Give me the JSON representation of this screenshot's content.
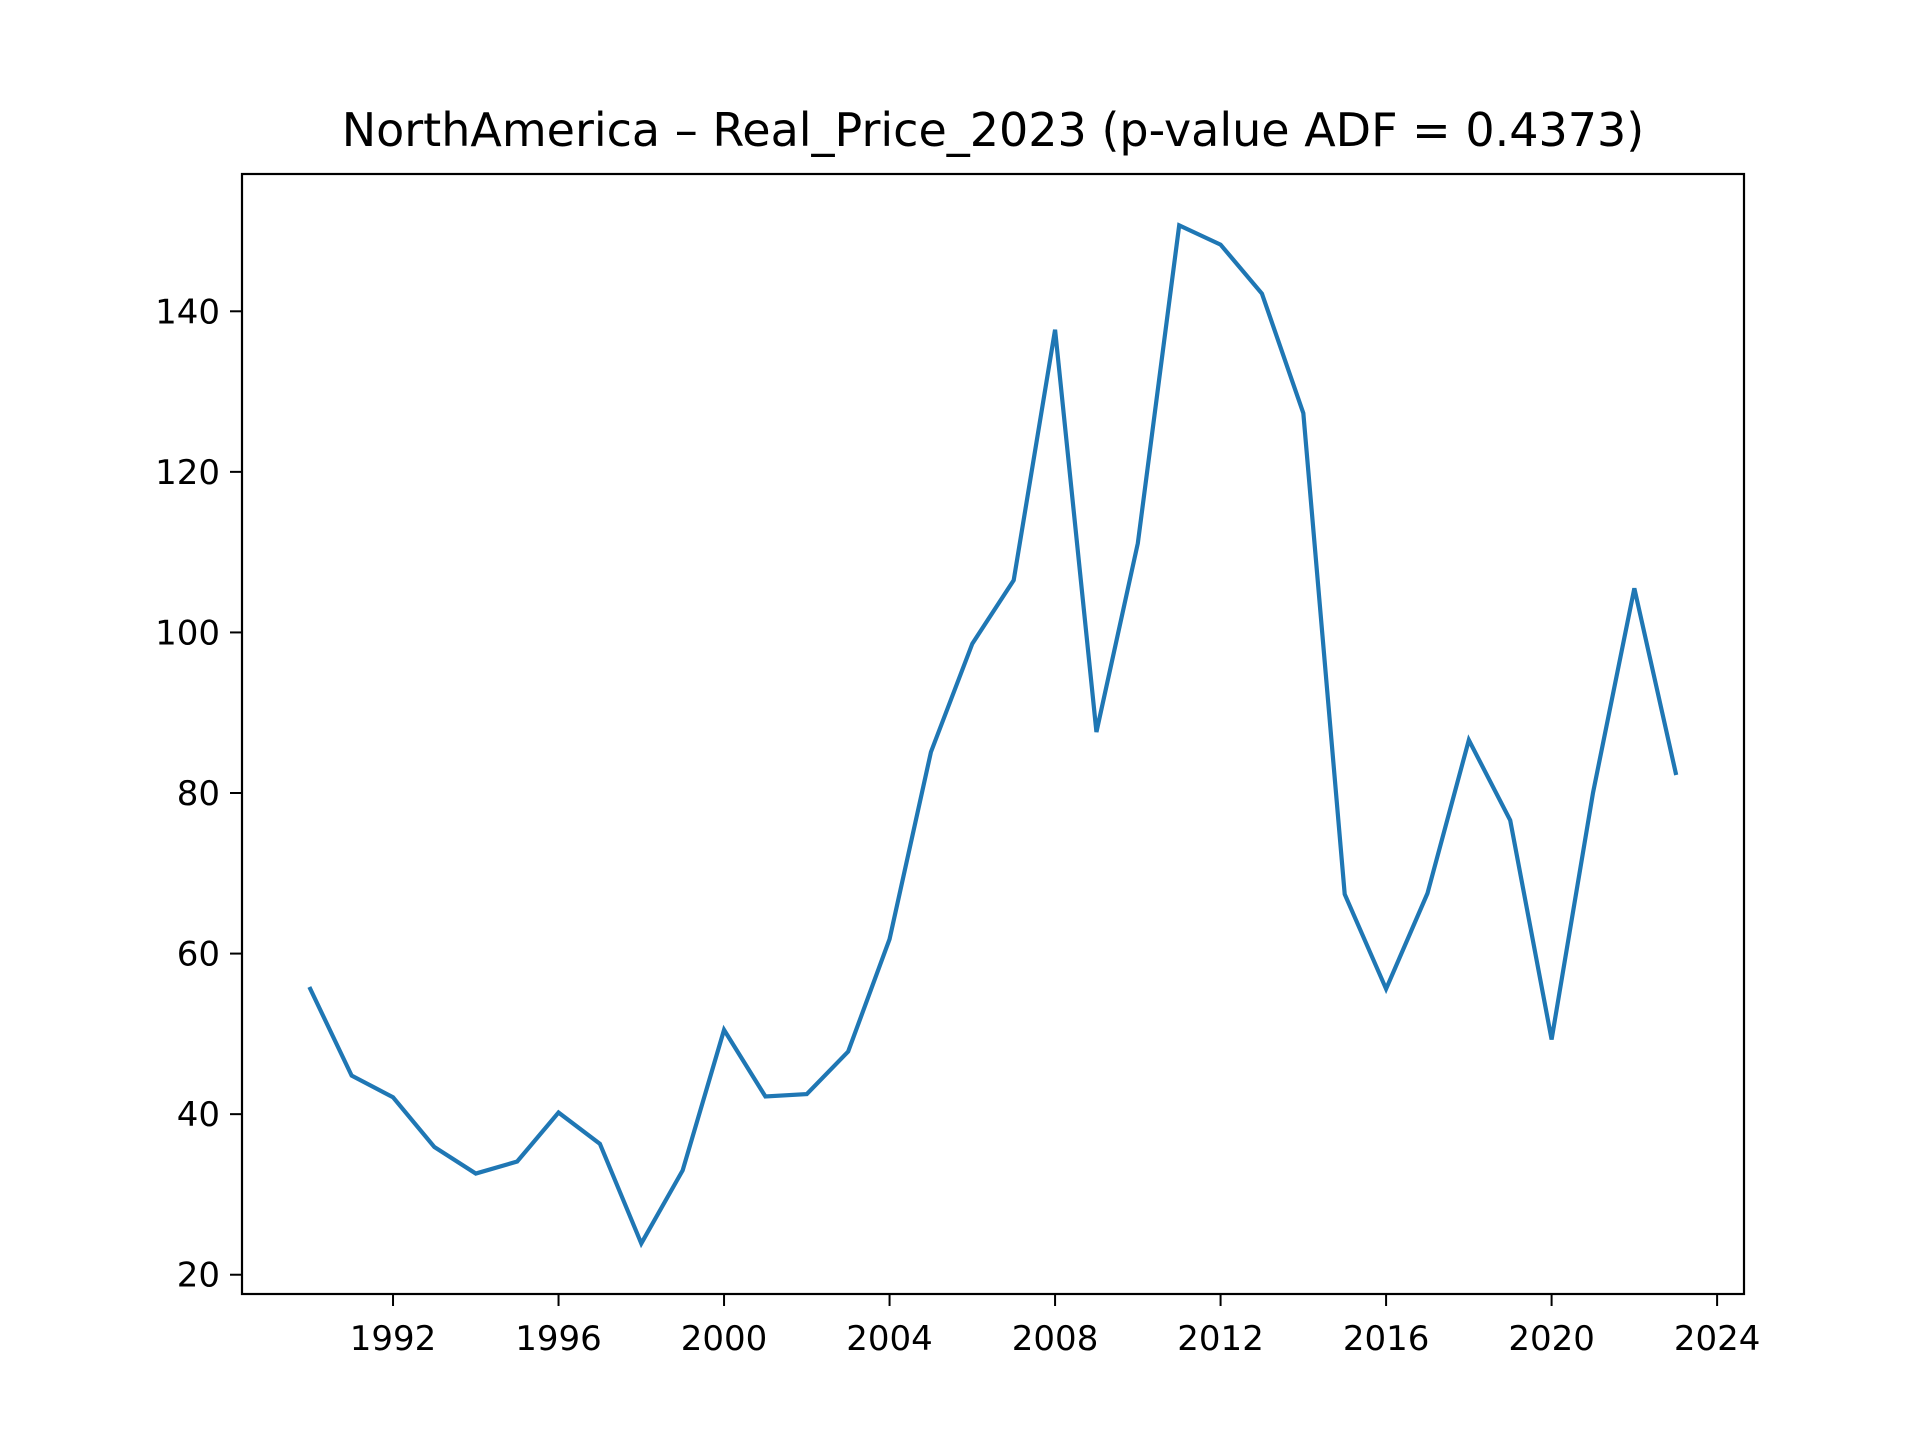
{
  "chart_data": {
    "type": "line",
    "title": "NorthAmerica – Real_Price_2023 (p-value ADF = 0.4373)",
    "xlabel": "",
    "ylabel": "",
    "x": [
      1990,
      1991,
      1992,
      1993,
      1994,
      1995,
      1996,
      1997,
      1998,
      1999,
      2000,
      2001,
      2002,
      2003,
      2004,
      2005,
      2006,
      2007,
      2008,
      2009,
      2010,
      2011,
      2012,
      2013,
      2014,
      2015,
      2016,
      2017,
      2018,
      2019,
      2020,
      2021,
      2022,
      2023
    ],
    "series": [
      {
        "values": [
          55.6,
          44.8,
          42.1,
          35.9,
          32.6,
          34.1,
          40.2,
          36.3,
          23.9,
          33.0,
          50.5,
          42.2,
          42.5,
          47.8,
          61.8,
          85.1,
          98.6,
          106.5,
          137.7,
          87.6,
          111.1,
          150.7,
          148.3,
          142.2,
          127.3,
          67.4,
          55.6,
          67.5,
          86.6,
          76.6,
          49.3,
          80.0,
          105.5,
          82.5
        ],
        "color": "#1f77b4"
      }
    ],
    "xticks": [
      "1992",
      "1996",
      "2000",
      "2004",
      "2008",
      "2012",
      "2016",
      "2020",
      "2024"
    ],
    "yticks": [
      "20",
      "40",
      "60",
      "80",
      "100",
      "120",
      "140"
    ],
    "xlim": [
      1988.35,
      2024.65
    ],
    "ylim": [
      17.6,
      157.1
    ],
    "grid": false,
    "legend": "none"
  }
}
